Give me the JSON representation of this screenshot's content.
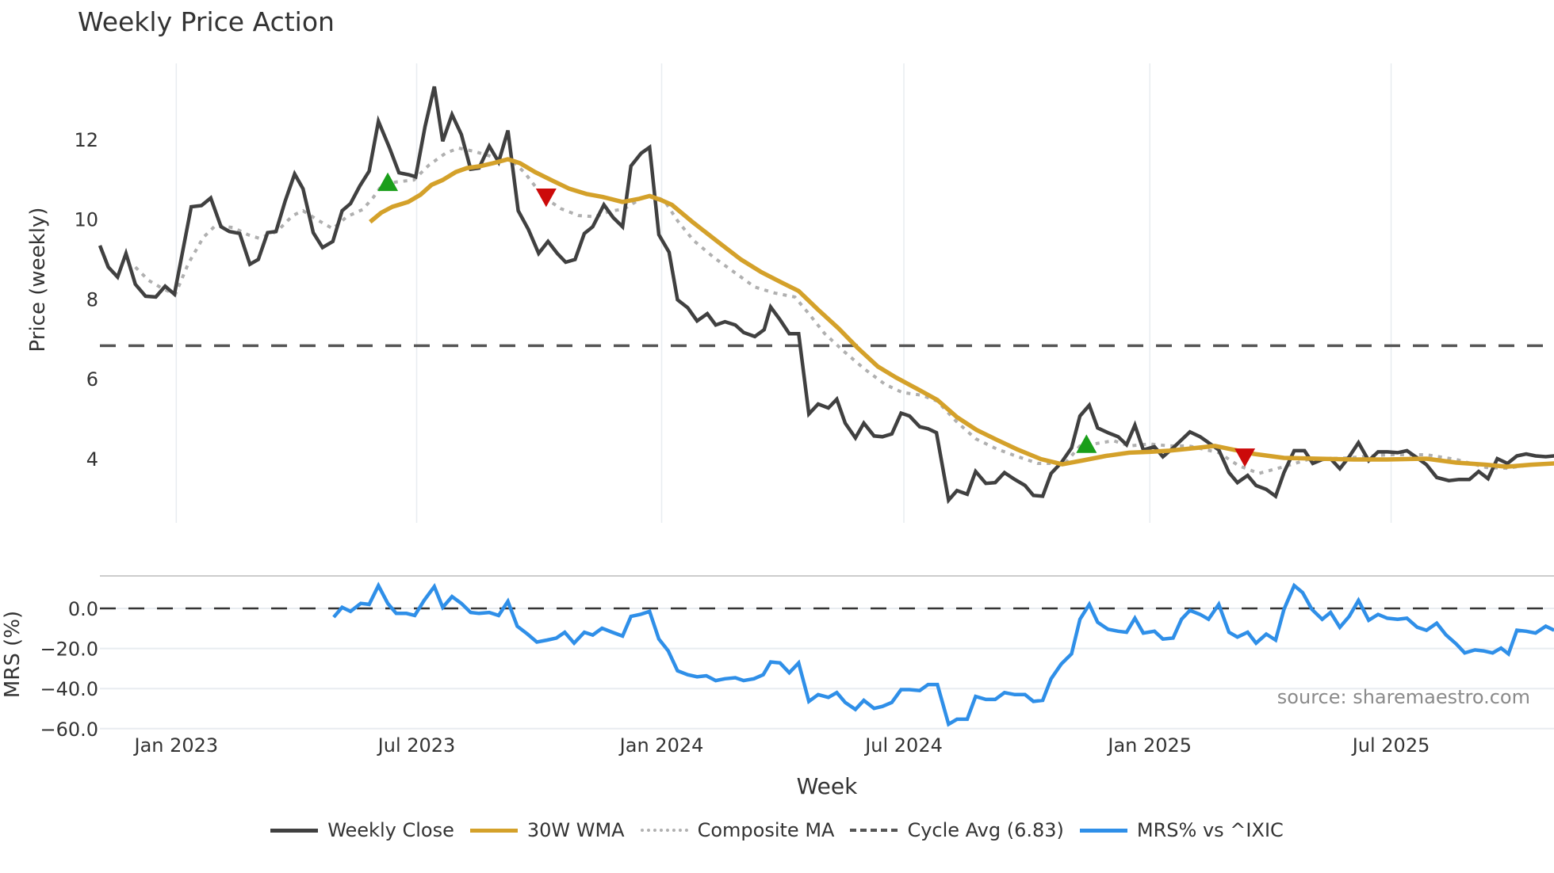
{
  "title": "Weekly Price Action",
  "source_label": "source: sharemaestro.com",
  "legend": [
    {
      "label": "Weekly Close",
      "color": "#404040",
      "style": "solid"
    },
    {
      "label": "30W WMA",
      "color": "#d4a12a",
      "style": "solid"
    },
    {
      "label": "Composite MA",
      "color": "#b0b0b0",
      "style": "dotted"
    },
    {
      "label": "Cycle Avg (6.83)",
      "color": "#555555",
      "style": "dashed"
    },
    {
      "label": "MRS% vs ^IXIC",
      "color": "#2f8fe8",
      "style": "solid"
    }
  ],
  "colors": {
    "close": "#404040",
    "wma": "#d4a12a",
    "composite": "#b0b0b0",
    "cycle": "#555555",
    "mrs": "#2f8fe8",
    "buy_marker": "#1a9e1a",
    "sell_marker": "#cc0a0a",
    "grid": "#e8ecf0"
  },
  "chart_data": [
    {
      "type": "line",
      "title": "Weekly Price Action",
      "xlabel": "Week",
      "ylabel": "Price (weekly)",
      "x_unit": "weeks since ~early Nov 2022",
      "x_ticks": [
        {
          "label": "Jan 2023",
          "week": 8.2
        },
        {
          "label": "Jul 2023",
          "week": 34.0
        },
        {
          "label": "Jan 2024",
          "week": 60.3
        },
        {
          "label": "Jul 2024",
          "week": 86.3
        },
        {
          "label": "Jan 2025",
          "week": 112.7
        },
        {
          "label": "Jul 2025",
          "week": 138.6
        }
      ],
      "y_ticks": [
        4,
        6,
        8,
        10,
        12
      ],
      "ylim": [
        2.5,
        13.8
      ],
      "xlim": [
        0,
        156.1
      ],
      "grid": true,
      "legend_position": "bottom",
      "hlines": [
        {
          "name": "Cycle Avg",
          "value": 6.83,
          "style": "dashed"
        }
      ],
      "series": [
        {
          "name": "Weekly Close",
          "weeks": [
            0,
            0.9,
            1.9,
            2.8,
            3.8,
            4.9,
            6.0,
            7.0,
            8.0,
            9.8,
            10.9,
            11.9,
            13.0,
            13.9,
            15.0,
            16.1,
            17.0,
            18.0,
            18.9,
            19.9,
            20.9,
            21.8,
            22.9,
            23.9,
            25.0,
            26.0,
            26.9,
            27.9,
            28.9,
            29.9,
            31.1,
            32.1,
            33.2,
            33.9,
            34.9,
            35.9,
            36.8,
            37.8,
            38.8,
            39.8,
            40.7,
            41.8,
            42.8,
            43.8,
            44.9,
            46.0,
            47.1,
            48.1,
            49.1,
            50.0,
            51.0,
            52.0,
            52.9,
            54.1,
            55.1,
            56.1,
            57.0,
            58.1,
            59.0,
            60.0,
            61.1,
            62.0,
            63.1,
            64.1,
            65.2,
            66.1,
            67.1,
            68.2,
            69.1,
            70.3,
            71.3,
            72.0,
            73.0,
            74.0,
            75.0,
            76.1,
            77.1,
            78.2,
            79.1,
            80.0,
            81.1,
            82.0,
            83.1,
            84.0,
            85.0,
            86.0,
            86.9,
            88.0,
            88.9,
            89.8,
            91.1,
            92.0,
            93.1,
            94.0,
            95.1,
            96.1,
            97.1,
            98.2,
            99.3,
            100.2,
            101.2,
            102.1,
            103.2,
            104.3,
            105.2,
            106.2,
            107.1,
            108.2,
            109.3,
            110.2,
            111.1,
            112.0,
            113.2,
            114.1,
            115.2,
            116.1,
            117.0,
            118.1,
            119.0,
            120.1,
            121.2,
            122.1,
            123.2,
            124.1,
            125.2,
            126.2,
            127.1,
            128.2,
            129.3,
            130.2,
            131.2,
            132.1,
            133.1,
            134.1,
            135.1,
            136.2,
            137.2,
            138.2,
            139.3,
            140.3,
            141.4,
            142.4,
            143.5,
            144.8,
            145.9,
            147.0,
            148.0,
            149.0,
            150.0,
            151.1,
            152.1,
            153.1,
            154.1,
            155.2,
            156.1
          ],
          "values": [
            9.34,
            8.8,
            8.55,
            9.14,
            8.37,
            8.07,
            8.05,
            8.32,
            8.12,
            10.31,
            10.34,
            10.53,
            9.81,
            9.69,
            9.64,
            8.87,
            8.99,
            9.66,
            9.69,
            10.46,
            11.13,
            10.76,
            9.66,
            9.29,
            9.44,
            10.21,
            10.39,
            10.83,
            11.2,
            12.45,
            11.78,
            11.16,
            11.11,
            11.06,
            12.32,
            13.32,
            11.95,
            12.62,
            12.12,
            11.25,
            11.28,
            11.83,
            11.43,
            12.22,
            10.21,
            9.74,
            9.14,
            9.44,
            9.14,
            8.92,
            8.99,
            9.64,
            9.81,
            10.36,
            10.04,
            9.81,
            11.33,
            11.65,
            11.8,
            9.61,
            9.17,
            7.98,
            7.78,
            7.45,
            7.63,
            7.35,
            7.43,
            7.35,
            7.16,
            7.06,
            7.23,
            7.8,
            7.48,
            7.13,
            7.13,
            5.12,
            5.37,
            5.27,
            5.49,
            4.89,
            4.52,
            4.89,
            4.57,
            4.55,
            4.62,
            5.14,
            5.07,
            4.8,
            4.75,
            4.65,
            2.96,
            3.2,
            3.11,
            3.68,
            3.38,
            3.4,
            3.65,
            3.48,
            3.33,
            3.08,
            3.06,
            3.63,
            3.9,
            4.27,
            5.07,
            5.34,
            4.77,
            4.65,
            4.55,
            4.35,
            4.84,
            4.22,
            4.3,
            4.05,
            4.27,
            4.47,
            4.67,
            4.55,
            4.4,
            4.22,
            3.65,
            3.4,
            3.58,
            3.33,
            3.23,
            3.06,
            3.65,
            4.2,
            4.2,
            3.88,
            3.98,
            4.0,
            3.75,
            4.05,
            4.4,
            3.95,
            4.17,
            4.17,
            4.15,
            4.2,
            4.02,
            3.85,
            3.53,
            3.45,
            3.48,
            3.48,
            3.68,
            3.5,
            4.0,
            3.88,
            4.07,
            4.12,
            4.07,
            4.05,
            4.07
          ]
        },
        {
          "name": "30W WMA",
          "weeks": [
            29.0,
            30.2,
            31.4,
            33.1,
            34.4,
            35.6,
            36.8,
            38.2,
            39.4,
            40.9,
            42.2,
            43.8,
            45.1,
            46.7,
            48.6,
            50.4,
            52.2,
            53.9,
            56.1,
            57.9,
            59.0,
            60.2,
            61.4,
            63.7,
            66.4,
            68.8,
            71.0,
            73.1,
            75.0,
            77.1,
            79.3,
            81.4,
            83.5,
            85.4,
            87.8,
            89.9,
            92.0,
            94.1,
            96.3,
            98.4,
            101.0,
            103.3,
            105.6,
            108.0,
            110.5,
            112.7,
            114.8,
            116.9,
            119.7,
            121.8,
            123.9,
            127.1,
            130.7,
            134.6,
            138.2,
            142.4,
            145.6,
            148.8,
            151.0,
            153.6,
            156.1
          ],
          "values": [
            9.93,
            10.16,
            10.31,
            10.43,
            10.61,
            10.86,
            10.98,
            11.18,
            11.28,
            11.33,
            11.4,
            11.5,
            11.4,
            11.18,
            10.96,
            10.76,
            10.63,
            10.56,
            10.43,
            10.51,
            10.58,
            10.48,
            10.36,
            9.91,
            9.42,
            8.99,
            8.67,
            8.42,
            8.2,
            7.73,
            7.26,
            6.76,
            6.31,
            6.04,
            5.74,
            5.47,
            5.04,
            4.72,
            4.47,
            4.24,
            3.99,
            3.86,
            3.96,
            4.07,
            4.15,
            4.17,
            4.2,
            4.25,
            4.32,
            4.22,
            4.12,
            4.02,
            4.0,
            3.98,
            3.98,
            4.0,
            3.9,
            3.85,
            3.8,
            3.85,
            3.88
          ]
        },
        {
          "name": "Composite MA",
          "weeks": [
            3.8,
            5.2,
            6.8,
            8.1,
            9.5,
            11.1,
            12.4,
            14.3,
            15.9,
            17.1,
            19.0,
            20.7,
            21.8,
            23.5,
            25.0,
            26.5,
            28.2,
            29.3,
            30.3,
            31.8,
            33.7,
            35.3,
            37.1,
            38.5,
            40.1,
            41.9,
            43.0,
            44.1,
            45.6,
            47.6,
            49.5,
            51.4,
            53.1,
            54.7,
            56.3,
            58.2,
            59.5,
            60.6,
            62.0,
            63.7,
            65.9,
            68.2,
            70.3,
            72.4,
            74.6,
            76.1,
            77.8,
            79.9,
            82.0,
            84.3,
            86.1,
            88.2,
            89.9,
            91.9,
            94.0,
            96.2,
            98.3,
            100.7,
            103.6,
            105.2,
            106.7,
            108.8,
            110.5,
            112.7,
            114.8,
            116.9,
            120.1,
            122.2,
            124.4,
            127.1,
            129.7,
            133.9,
            138.2,
            142.4,
            145.6,
            148.8,
            151.0,
            153.6,
            156.1
          ],
          "values": [
            8.8,
            8.47,
            8.25,
            8.12,
            8.89,
            9.54,
            9.84,
            9.79,
            9.61,
            9.52,
            9.69,
            10.09,
            10.21,
            9.96,
            9.76,
            10.06,
            10.24,
            10.53,
            10.86,
            10.93,
            10.98,
            11.35,
            11.65,
            11.78,
            11.7,
            11.58,
            11.5,
            11.5,
            11.16,
            10.56,
            10.26,
            10.09,
            10.06,
            10.19,
            10.26,
            10.53,
            10.58,
            10.46,
            9.96,
            9.47,
            9.04,
            8.65,
            8.3,
            8.15,
            8.05,
            7.63,
            7.13,
            6.68,
            6.26,
            5.86,
            5.66,
            5.59,
            5.44,
            4.94,
            4.5,
            4.25,
            4.07,
            3.88,
            3.88,
            4.32,
            4.37,
            4.45,
            4.32,
            4.37,
            4.32,
            4.32,
            4.15,
            3.83,
            3.63,
            3.8,
            3.98,
            4.02,
            4.1,
            4.1,
            3.98,
            3.78,
            3.76,
            3.85,
            3.88
          ]
        }
      ],
      "markers": [
        {
          "type": "buy",
          "shape": "triangle-up",
          "week": 30.9,
          "value": 10.91
        },
        {
          "type": "sell",
          "shape": "triangle-down",
          "week": 47.9,
          "value": 10.56
        },
        {
          "type": "buy",
          "shape": "triangle-up",
          "week": 105.9,
          "value": 4.35
        },
        {
          "type": "sell",
          "shape": "triangle-down",
          "week": 122.9,
          "value": 4.05
        }
      ]
    },
    {
      "type": "line",
      "title": "",
      "xlabel": "Week",
      "ylabel": "MRS (%)",
      "y_ticks": [
        0.0,
        -20.0,
        -40.0,
        -60.0
      ],
      "y_tick_labels": [
        "0.0",
        "−20.0",
        "−40.0",
        "−60.0"
      ],
      "ylim": [
        -61,
        15
      ],
      "xlim": [
        0,
        156.1
      ],
      "hlines": [
        {
          "name": "zero",
          "value": 0,
          "style": "dashed"
        }
      ],
      "series": [
        {
          "name": "MRS% vs ^IXIC",
          "weeks": [
            25.1,
            26.0,
            26.9,
            28.0,
            28.9,
            29.9,
            30.9,
            31.8,
            32.9,
            33.8,
            34.8,
            35.9,
            36.8,
            37.8,
            38.8,
            39.8,
            40.7,
            41.8,
            42.8,
            43.8,
            44.8,
            45.9,
            46.9,
            48.0,
            49.0,
            49.9,
            50.9,
            52.0,
            52.9,
            53.9,
            55.0,
            56.1,
            57.0,
            58.0,
            59.0,
            60.0,
            61.0,
            62.0,
            63.1,
            64.1,
            65.1,
            66.1,
            67.1,
            68.2,
            69.1,
            70.2,
            71.2,
            72.0,
            73.0,
            74.0,
            75.0,
            76.1,
            77.1,
            78.2,
            79.1,
            80.0,
            81.1,
            82.0,
            83.1,
            84.0,
            85.0,
            86.0,
            86.9,
            88.0,
            88.9,
            89.9,
            91.1,
            92.0,
            93.1,
            94.0,
            95.1,
            96.1,
            97.1,
            98.2,
            99.3,
            100.2,
            101.2,
            102.1,
            103.2,
            104.3,
            105.2,
            106.2,
            107.1,
            108.2,
            109.3,
            110.2,
            111.1,
            112.0,
            113.2,
            114.1,
            115.2,
            116.1,
            117.0,
            118.1,
            119.0,
            120.1,
            121.2,
            122.1,
            123.2,
            124.1,
            125.2,
            126.2,
            127.1,
            128.2,
            129.1,
            130.1,
            131.2,
            132.1,
            133.1,
            134.1,
            135.1,
            136.2,
            137.2,
            138.2,
            139.3,
            140.3,
            141.4,
            142.4,
            143.5,
            144.5,
            145.6,
            146.5,
            147.6,
            148.5,
            149.5,
            150.4,
            151.2,
            152.1,
            153.1,
            154.1,
            155.2,
            156.1
          ],
          "values": [
            -4.4,
            0.5,
            -1.5,
            2.5,
            2.0,
            11.4,
            2.5,
            -2.5,
            -2.5,
            -3.5,
            4.0,
            10.9,
            0.5,
            5.9,
            2.5,
            -2.0,
            -2.5,
            -2.0,
            -3.5,
            3.5,
            -8.9,
            -12.8,
            -16.8,
            -15.8,
            -14.8,
            -11.9,
            -17.3,
            -11.9,
            -13.3,
            -9.9,
            -11.9,
            -13.8,
            -4.0,
            -3.0,
            -1.5,
            -15.3,
            -21.2,
            -31.1,
            -33.1,
            -34.1,
            -33.6,
            -36.0,
            -35.1,
            -34.6,
            -36.0,
            -35.1,
            -33.1,
            -26.7,
            -27.2,
            -32.1,
            -27.2,
            -46.4,
            -43.0,
            -44.4,
            -42.0,
            -46.9,
            -50.4,
            -45.9,
            -49.9,
            -48.9,
            -46.9,
            -40.5,
            -40.5,
            -41.0,
            -38.0,
            -38.0,
            -57.8,
            -55.3,
            -55.3,
            -43.9,
            -45.4,
            -45.4,
            -42.0,
            -43.0,
            -43.0,
            -46.4,
            -45.9,
            -35.1,
            -27.7,
            -22.7,
            -5.4,
            2.0,
            -6.9,
            -10.4,
            -11.4,
            -11.9,
            -4.9,
            -12.3,
            -11.4,
            -15.3,
            -14.8,
            -5.4,
            -1.0,
            -3.0,
            -5.4,
            2.0,
            -11.9,
            -14.3,
            -11.9,
            -17.3,
            -12.8,
            -15.8,
            -0.5,
            11.4,
            7.9,
            -0.5,
            -5.4,
            -2.0,
            -9.4,
            -4.0,
            4.0,
            -5.9,
            -3.0,
            -4.9,
            -5.4,
            -4.9,
            -9.4,
            -10.9,
            -7.4,
            -13.3,
            -17.8,
            -22.2,
            -20.7,
            -21.2,
            -22.2,
            -19.8,
            -22.7,
            -10.9,
            -11.4,
            -12.3,
            -8.9,
            -10.9
          ]
        }
      ]
    }
  ]
}
